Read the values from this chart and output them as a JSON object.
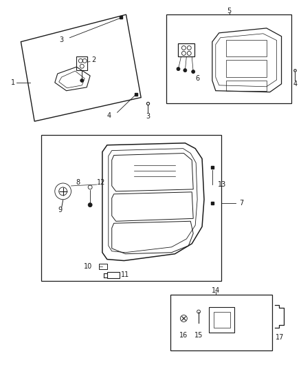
{
  "bg_color": "#ffffff",
  "lc": "#1a1a1a",
  "tc": "#1a1a1a",
  "figsize": [
    4.38,
    5.33
  ],
  "dpi": 100
}
